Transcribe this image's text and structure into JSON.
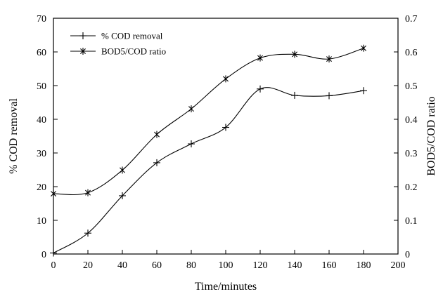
{
  "chart_data": {
    "type": "line",
    "title": "",
    "xlabel": "Time/minutes",
    "ylabel_left": "% COD removal",
    "ylabel_right": "BOD5/COD ratio",
    "xlim": [
      0,
      200
    ],
    "ylim_left": [
      0,
      70
    ],
    "ylim_right": [
      0,
      0.7
    ],
    "x_ticks": [
      "0",
      "20",
      "40",
      "60",
      "80",
      "100",
      "120",
      "140",
      "160",
      "180",
      "200"
    ],
    "y_left_ticks": [
      "0",
      "10",
      "20",
      "30",
      "40",
      "50",
      "60",
      "70"
    ],
    "y_right_ticks": [
      "0",
      "0.1",
      "0.2",
      "0.3",
      "0.4",
      "0.5",
      "0.6",
      "0.7"
    ],
    "grid": false,
    "legend_position": "top-left",
    "series": [
      {
        "name": "% COD removal",
        "axis": "left",
        "marker": "plus",
        "x": [
          0,
          20,
          40,
          60,
          80,
          100,
          120,
          140,
          160,
          180
        ],
        "y": [
          0.3,
          6.2,
          17.3,
          27.1,
          32.7,
          37.6,
          49.0,
          47.1,
          47.0,
          48.5
        ]
      },
      {
        "name": "BOD5/COD ratio",
        "axis": "right",
        "marker": "asterisk",
        "x": [
          0,
          20,
          40,
          60,
          80,
          100,
          120,
          140,
          160,
          180
        ],
        "y": [
          0.179,
          0.182,
          0.249,
          0.355,
          0.431,
          0.52,
          0.582,
          0.593,
          0.579,
          0.611
        ]
      }
    ]
  }
}
